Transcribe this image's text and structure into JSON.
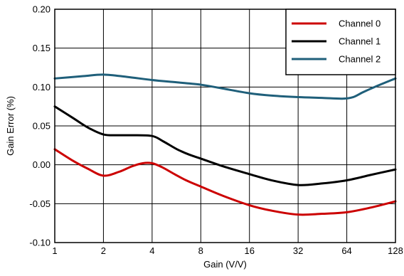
{
  "chart_data": {
    "type": "line",
    "title": "",
    "xlabel": "Gain (V/V)",
    "ylabel": "Gain Error (%)",
    "x_scale": "log2",
    "x": [
      1,
      2,
      4,
      8,
      16,
      32,
      64,
      128
    ],
    "x_tick_labels": [
      "1",
      "2",
      "4",
      "8",
      "16",
      "32",
      "64",
      "128"
    ],
    "xlim": [
      1,
      128
    ],
    "ylim": [
      -0.1,
      0.2
    ],
    "y_ticks": [
      -0.1,
      -0.05,
      0.0,
      0.05,
      0.1,
      0.15,
      0.2
    ],
    "y_tick_labels": [
      "-0.10",
      "-0.05",
      "0.00",
      "0.05",
      "0.10",
      "0.15",
      "0.20"
    ],
    "grid": true,
    "legend_position": "top-right",
    "series": [
      {
        "name": "Channel 0",
        "color": "#cc0000",
        "points": [
          [
            1,
            0.02
          ],
          [
            1.3,
            0.005
          ],
          [
            1.6,
            -0.005
          ],
          [
            2,
            -0.014
          ],
          [
            2.5,
            -0.009
          ],
          [
            3,
            -0.002
          ],
          [
            3.5,
            0.002
          ],
          [
            4,
            0.002
          ],
          [
            4.6,
            -0.003
          ],
          [
            5.5,
            -0.012
          ],
          [
            6.5,
            -0.02
          ],
          [
            8,
            -0.028
          ],
          [
            11,
            -0.04
          ],
          [
            16,
            -0.052
          ],
          [
            22,
            -0.059
          ],
          [
            32,
            -0.064
          ],
          [
            45,
            -0.063
          ],
          [
            64,
            -0.061
          ],
          [
            90,
            -0.055
          ],
          [
            128,
            -0.047
          ]
        ]
      },
      {
        "name": "Channel 1",
        "color": "#000000",
        "points": [
          [
            1,
            0.075
          ],
          [
            1.3,
            0.06
          ],
          [
            1.6,
            0.048
          ],
          [
            2,
            0.039
          ],
          [
            2.5,
            0.038
          ],
          [
            3,
            0.038
          ],
          [
            4,
            0.037
          ],
          [
            4.7,
            0.03
          ],
          [
            5.7,
            0.02
          ],
          [
            6.8,
            0.013
          ],
          [
            8,
            0.008
          ],
          [
            11,
            -0.002
          ],
          [
            16,
            -0.012
          ],
          [
            22,
            -0.02
          ],
          [
            32,
            -0.026
          ],
          [
            45,
            -0.024
          ],
          [
            64,
            -0.02
          ],
          [
            90,
            -0.013
          ],
          [
            128,
            -0.006
          ]
        ]
      },
      {
        "name": "Channel 2",
        "color": "#1f5f7a",
        "points": [
          [
            1,
            0.111
          ],
          [
            1.5,
            0.114
          ],
          [
            2,
            0.116
          ],
          [
            2.8,
            0.113
          ],
          [
            4,
            0.109
          ],
          [
            5.7,
            0.106
          ],
          [
            8,
            0.103
          ],
          [
            11,
            0.098
          ],
          [
            16,
            0.092
          ],
          [
            22,
            0.089
          ],
          [
            32,
            0.087
          ],
          [
            45,
            0.086
          ],
          [
            60,
            0.085
          ],
          [
            70,
            0.087
          ],
          [
            80,
            0.093
          ],
          [
            95,
            0.1
          ],
          [
            128,
            0.111
          ]
        ]
      }
    ]
  }
}
